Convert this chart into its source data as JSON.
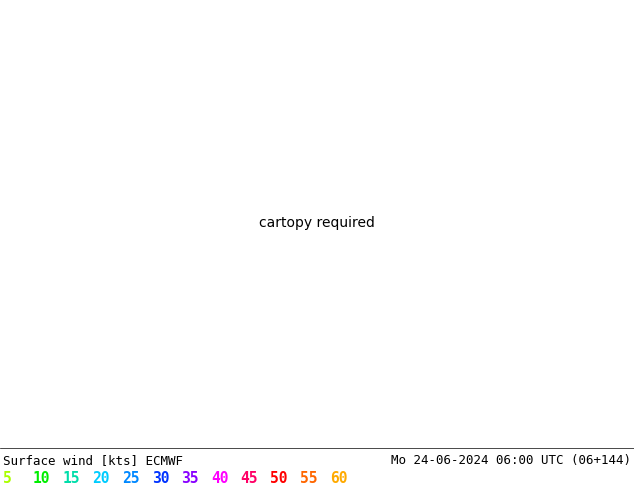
{
  "title_left": "Surface wind [kts] ECMWF",
  "title_right": "Mo 24-06-2024 06:00 UTC (06+144)",
  "legend_values": [
    5,
    10,
    15,
    20,
    25,
    30,
    35,
    40,
    45,
    50,
    55,
    60
  ],
  "legend_colors": [
    "#aaff00",
    "#00ee00",
    "#00ddaa",
    "#00ccff",
    "#0088ff",
    "#0033ff",
    "#8800ff",
    "#ff00ff",
    "#ff0066",
    "#ff0000",
    "#ff6600",
    "#ffaa00"
  ],
  "wind_colormap": [
    [
      0,
      "#ffff00"
    ],
    [
      5,
      "#ccff00"
    ],
    [
      10,
      "#88ee00"
    ],
    [
      15,
      "#00dd00"
    ],
    [
      20,
      "#00ddaa"
    ],
    [
      25,
      "#00ccff"
    ],
    [
      30,
      "#0088ff"
    ],
    [
      35,
      "#0033ff"
    ],
    [
      40,
      "#8800ff"
    ],
    [
      45,
      "#ff00ff"
    ],
    [
      50,
      "#ff0066"
    ],
    [
      55,
      "#ff0000"
    ],
    [
      60,
      "#ff6600"
    ]
  ],
  "figsize": [
    6.34,
    4.9
  ],
  "dpi": 100,
  "map_extent": [
    -125,
    -66,
    23,
    50
  ],
  "background_color": "#ffffff"
}
